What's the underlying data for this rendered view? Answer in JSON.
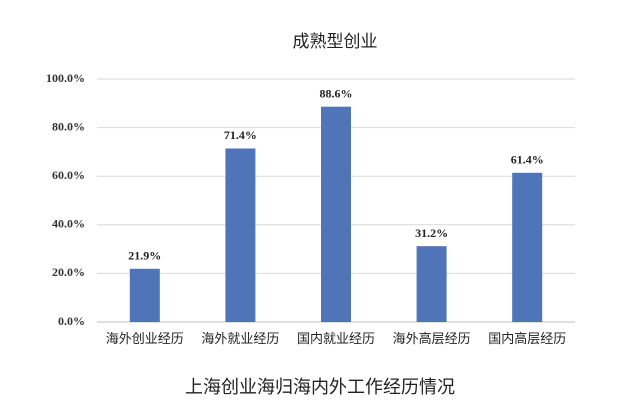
{
  "chart_data": {
    "type": "bar",
    "title": "成熟型创业",
    "caption": "上海创业海归海内外工作经历情况",
    "categories": [
      "海外创业经历",
      "海外就业经历",
      "国内就业经历",
      "海外高层经历",
      "国内高层经历"
    ],
    "values": [
      21.9,
      71.4,
      88.6,
      31.2,
      61.4
    ],
    "value_labels": [
      "21.9%",
      "71.4%",
      "88.6%",
      "31.2%",
      "61.4%"
    ],
    "color": "#4f74b8",
    "ylim": [
      0,
      100
    ],
    "yticks": [
      {
        "value": 0,
        "label": "0.0%"
      },
      {
        "value": 20,
        "label": "20.0%"
      },
      {
        "value": 40,
        "label": "40.0%"
      },
      {
        "value": 60,
        "label": "60.0%"
      },
      {
        "value": 80,
        "label": "80.0%"
      },
      {
        "value": 100,
        "label": "100.0%"
      }
    ],
    "grid": true
  }
}
